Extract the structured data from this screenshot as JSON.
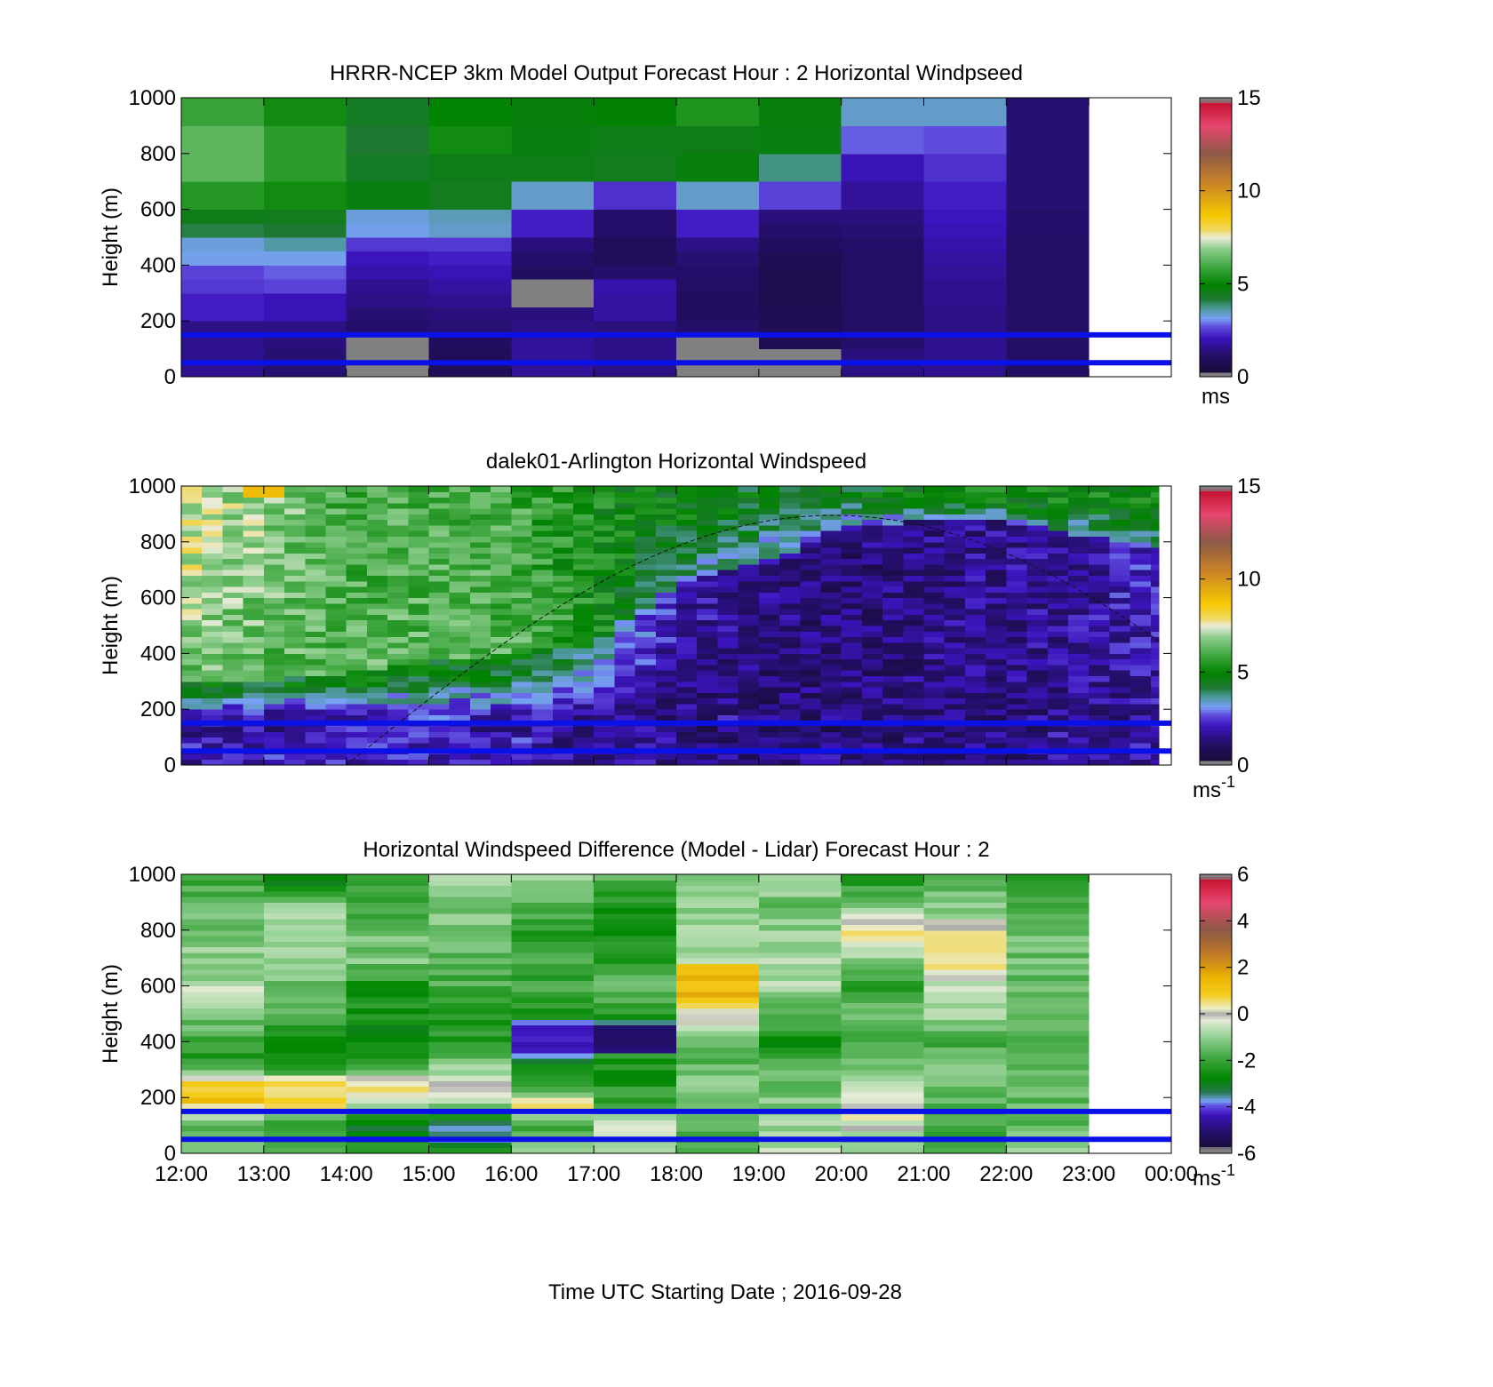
{
  "figure": {
    "xlabel": "Time UTC  Starting Date ; 2016-09-28"
  },
  "chart_data": [
    {
      "type": "heatmap",
      "title": "HRRR-NCEP 3km Model Output   Forecast Hour : 2 Horizontal Windpseed",
      "ylabel": "Height (m)",
      "xlim": [
        12,
        24
      ],
      "ylim": [
        0,
        1000
      ],
      "yticks": [
        0,
        200,
        400,
        600,
        800,
        1000
      ],
      "xticks": [
        12,
        13,
        14,
        15,
        16,
        17,
        18,
        19,
        20,
        21,
        22,
        23,
        24
      ],
      "xticklabels_visible": false,
      "colorbar": {
        "min": 0,
        "max": 15,
        "ticks": [
          0,
          5,
          10,
          15
        ],
        "unit": "ms",
        "unit_sup": "",
        "colormap": "windspeed"
      },
      "reference_lines_m": [
        50,
        150
      ],
      "reference_line_color": "#0a10e8",
      "y_edges": [
        0,
        50,
        100,
        150,
        200,
        250,
        300,
        350,
        400,
        450,
        500,
        550,
        600,
        700,
        800,
        900,
        1000
      ],
      "columns": [
        {
          "x0": 12,
          "x1": 13,
          "values": [
            1.6,
            1.6,
            1.6,
            1.5,
            2.2,
            2.2,
            2.5,
            2.6,
            3.2,
            3.3,
            4.1,
            4.6,
            5.5,
            6.3,
            6.3,
            5.8
          ]
        },
        {
          "x0": 13,
          "x1": 14,
          "values": [
            1.3,
            1.3,
            1.4,
            1.5,
            2.0,
            2.0,
            2.6,
            2.8,
            3.2,
            3.6,
            4.2,
            4.5,
            5.2,
            5.6,
            5.6,
            5.2
          ]
        },
        {
          "x0": 14,
          "x1": 15,
          "values": [
            -1,
            -1,
            -1,
            1.2,
            1.3,
            1.5,
            1.6,
            1.9,
            2.1,
            2.5,
            3.2,
            3.3,
            4.7,
            4.4,
            4.2,
            4.4
          ]
        },
        {
          "x0": 15,
          "x1": 16,
          "values": [
            0.9,
            0.9,
            1.0,
            1.3,
            1.4,
            1.6,
            1.8,
            2.0,
            2.2,
            2.5,
            3.4,
            3.5,
            4.5,
            4.6,
            5.2,
            5.0
          ]
        },
        {
          "x0": 16,
          "x1": 17,
          "values": [
            1.7,
            1.7,
            1.7,
            1.5,
            1.4,
            -1,
            -1,
            1.0,
            1.2,
            1.4,
            2.2,
            2.2,
            3.4,
            4.6,
            4.7,
            4.8
          ]
        },
        {
          "x0": 17,
          "x1": 18,
          "values": [
            1.5,
            1.5,
            1.5,
            1.4,
            1.8,
            1.8,
            1.9,
            1.2,
            0.9,
            0.9,
            1.2,
            1.2,
            2.4,
            4.5,
            4.6,
            4.9
          ]
        },
        {
          "x0": 18,
          "x1": 19,
          "values": [
            -1,
            -1,
            -1,
            1.2,
            1.0,
            1.0,
            1.1,
            1.2,
            1.3,
            1.5,
            2.2,
            2.2,
            3.4,
            4.8,
            4.6,
            5.4
          ]
        },
        {
          "x0": 19,
          "x1": 20,
          "values": [
            -1,
            -1,
            0.8,
            0.8,
            0.8,
            0.7,
            0.7,
            0.7,
            0.8,
            1.0,
            1.2,
            1.4,
            2.6,
            3.8,
            4.7,
            4.8
          ]
        },
        {
          "x0": 20,
          "x1": 21,
          "values": [
            1.5,
            1.4,
            1.2,
            1.1,
            1.1,
            1.1,
            1.1,
            1.1,
            1.1,
            1.2,
            1.3,
            1.4,
            1.7,
            2.0,
            2.8,
            3.4
          ]
        },
        {
          "x0": 21,
          "x1": 22,
          "values": [
            1.6,
            1.6,
            1.6,
            1.5,
            1.5,
            1.6,
            1.6,
            1.7,
            1.8,
            1.9,
            2.0,
            2.1,
            2.2,
            2.4,
            2.7,
            3.4
          ]
        },
        {
          "x0": 22,
          "x1": 23,
          "values": [
            1.1,
            1.1,
            1.1,
            1.1,
            1.1,
            1.1,
            1.1,
            1.1,
            1.1,
            1.1,
            1.2,
            1.2,
            1.3,
            1.3,
            1.3,
            1.3
          ]
        }
      ]
    },
    {
      "type": "heatmap",
      "title": "dalek01-Arlington  Horizontal Windspeed",
      "ylabel": "Height (m)",
      "xlim": [
        12,
        24
      ],
      "ylim": [
        0,
        1000
      ],
      "yticks": [
        0,
        200,
        400,
        600,
        800,
        1000
      ],
      "xticks": [
        12,
        13,
        14,
        15,
        16,
        17,
        18,
        19,
        20,
        21,
        22,
        23,
        24
      ],
      "xticklabels_visible": false,
      "colorbar": {
        "min": 0,
        "max": 15,
        "ticks": [
          0,
          5,
          10,
          15
        ],
        "unit": "ms",
        "unit_sup": "-1",
        "colormap": "windspeed"
      },
      "reference_lines_m": [
        50,
        150
      ],
      "reference_line_color": "#0a10e8",
      "data_range_x": [
        12,
        23.85
      ],
      "time_step_h": 0.25,
      "height_step_m": 20,
      "profile_anchors": {
        "x": [
          12,
          13,
          14,
          15,
          16,
          17,
          18,
          19,
          20,
          21,
          22,
          23,
          23.85
        ],
        "mixing_height_m": [
          300,
          300,
          330,
          370,
          400,
          430,
          650,
          720,
          850,
          880,
          870,
          820,
          780
        ],
        "low_jet_ms": [
          2.6,
          2.6,
          3.0,
          3.4,
          2.8,
          2.5,
          2.0,
          1.8,
          1.8,
          2.0,
          2.0,
          2.2,
          2.6
        ],
        "upper_ms": [
          7.5,
          6.8,
          6.0,
          6.1,
          6.0,
          5.2,
          4.8,
          4.6,
          4.6,
          4.8,
          5.0,
          5.0,
          5.0
        ],
        "mid_ms": [
          4.8,
          4.6,
          4.6,
          4.7,
          4.6,
          3.8,
          2.0,
          1.5,
          1.3,
          1.5,
          1.6,
          1.9,
          2.3
        ]
      },
      "peak_patch": {
        "x": [
          12.8,
          13.3
        ],
        "y": [
          960,
          990
        ],
        "value": 9.0
      },
      "solar_curve": {
        "x": [
          14,
          23.85
        ],
        "peak_x": 19.9,
        "peak_y_m": 895,
        "style": "dashed"
      }
    },
    {
      "type": "heatmap",
      "title": "Horizontal Windspeed Difference (Model - Lidar) Forecast Hour : 2",
      "ylabel": "Height (m)",
      "xlabel": "Time UTC  Starting Date ; 2016-09-28",
      "xlim": [
        12,
        24
      ],
      "ylim": [
        0,
        1000
      ],
      "yticks": [
        0,
        200,
        400,
        600,
        800,
        1000
      ],
      "xticks": [
        12,
        13,
        14,
        15,
        16,
        17,
        18,
        19,
        20,
        21,
        22,
        23,
        24
      ],
      "xticklabels": [
        "12:00",
        "13:00",
        "14:00",
        "15:00",
        "16:00",
        "17:00",
        "18:00",
        "19:00",
        "20:00",
        "21:00",
        "22:00",
        "23:00",
        "00:00"
      ],
      "colorbar": {
        "min": -6,
        "max": 6,
        "ticks": [
          -6,
          -4,
          -2,
          0,
          2,
          4,
          6
        ],
        "unit": "ms",
        "unit_sup": "-1",
        "colormap": "difference"
      },
      "reference_lines_m": [
        50,
        150
      ],
      "reference_line_color": "#0a10e8",
      "height_step_m": 20,
      "columns": [
        {
          "x0": 12,
          "x1": 13,
          "profile": [
            [
              0,
              -1.2
            ],
            [
              120,
              -1.5
            ],
            [
              180,
              1.0
            ],
            [
              260,
              1.0
            ],
            [
              300,
              -2.0
            ],
            [
              400,
              -2.3
            ],
            [
              480,
              -1.2
            ],
            [
              560,
              -0.4
            ],
            [
              620,
              -1.0
            ],
            [
              800,
              -1.2
            ],
            [
              900,
              -1.6
            ],
            [
              1000,
              -2.0
            ]
          ]
        },
        {
          "x0": 13,
          "x1": 14,
          "profile": [
            [
              0,
              -1.5
            ],
            [
              100,
              -2.4
            ],
            [
              180,
              1.0
            ],
            [
              260,
              0.8
            ],
            [
              300,
              -2.4
            ],
            [
              420,
              -2.6
            ],
            [
              480,
              -1.8
            ],
            [
              600,
              -1.4
            ],
            [
              800,
              -0.6
            ],
            [
              900,
              -1.2
            ],
            [
              960,
              -2.6
            ],
            [
              1000,
              -3.0
            ]
          ]
        },
        {
          "x0": 14,
          "x1": 15,
          "profile": [
            [
              0,
              -2.0
            ],
            [
              100,
              -3.2
            ],
            [
              200,
              0.3
            ],
            [
              260,
              0.4
            ],
            [
              300,
              -2.0
            ],
            [
              400,
              -2.6
            ],
            [
              600,
              -2.4
            ],
            [
              700,
              -1.2
            ],
            [
              800,
              -1.4
            ],
            [
              1000,
              -2.4
            ]
          ]
        },
        {
          "x0": 15,
          "x1": 16,
          "profile": [
            [
              0,
              -2.2
            ],
            [
              60,
              -3.6
            ],
            [
              140,
              -2.6
            ],
            [
              220,
              0.0
            ],
            [
              300,
              -1.0
            ],
            [
              400,
              -2.4
            ],
            [
              500,
              -2.1
            ],
            [
              700,
              -1.6
            ],
            [
              900,
              -1.2
            ],
            [
              1000,
              -0.6
            ]
          ]
        },
        {
          "x0": 16,
          "x1": 17,
          "profile": [
            [
              0,
              -0.8
            ],
            [
              100,
              -1.8
            ],
            [
              180,
              0.6
            ],
            [
              240,
              -2.6
            ],
            [
              300,
              -2.2
            ],
            [
              360,
              -3.8
            ],
            [
              400,
              -4.6
            ],
            [
              460,
              -4.8
            ],
            [
              480,
              -2.6
            ],
            [
              600,
              -1.9
            ],
            [
              800,
              -2.2
            ],
            [
              1000,
              -1.0
            ]
          ]
        },
        {
          "x0": 17,
          "x1": 18,
          "profile": [
            [
              0,
              -1.0
            ],
            [
              110,
              -0.2
            ],
            [
              170,
              -1.8
            ],
            [
              260,
              -2.4
            ],
            [
              350,
              -2.4
            ],
            [
              370,
              -4.8
            ],
            [
              460,
              -4.7
            ],
            [
              480,
              -2.6
            ],
            [
              600,
              -1.2
            ],
            [
              700,
              -2.4
            ],
            [
              850,
              -2.6
            ],
            [
              1000,
              -1.6
            ]
          ]
        },
        {
          "x0": 18,
          "x1": 19,
          "profile": [
            [
              0,
              -2.0
            ],
            [
              200,
              -1.2
            ],
            [
              300,
              -1.4
            ],
            [
              400,
              -1.8
            ],
            [
              440,
              -0.3
            ],
            [
              500,
              0.3
            ],
            [
              560,
              1.4
            ],
            [
              640,
              1.2
            ],
            [
              680,
              0.6
            ],
            [
              700,
              -1.0
            ],
            [
              800,
              -0.9
            ],
            [
              1000,
              -1.0
            ]
          ]
        },
        {
          "x0": 19,
          "x1": 20,
          "profile": [
            [
              0,
              -0.6
            ],
            [
              200,
              -1.2
            ],
            [
              300,
              -1.4
            ],
            [
              400,
              -2.6
            ],
            [
              500,
              -1.8
            ],
            [
              600,
              -0.8
            ],
            [
              680,
              -0.6
            ],
            [
              760,
              -0.8
            ],
            [
              900,
              -1.4
            ],
            [
              1000,
              -0.4
            ]
          ]
        },
        {
          "x0": 20,
          "x1": 21,
          "profile": [
            [
              0,
              -1.6
            ],
            [
              140,
              0.2
            ],
            [
              200,
              -0.3
            ],
            [
              300,
              -1.2
            ],
            [
              400,
              -1.8
            ],
            [
              500,
              -1.4
            ],
            [
              600,
              -2.2
            ],
            [
              700,
              -1.2
            ],
            [
              780,
              0.3
            ],
            [
              860,
              -0.8
            ],
            [
              920,
              -2.0
            ],
            [
              1000,
              -2.2
            ]
          ]
        },
        {
          "x0": 21,
          "x1": 22,
          "profile": [
            [
              0,
              -1.8
            ],
            [
              200,
              -1.6
            ],
            [
              300,
              -1.4
            ],
            [
              400,
              -1.8
            ],
            [
              500,
              -1.0
            ],
            [
              600,
              -0.6
            ],
            [
              680,
              0.4
            ],
            [
              720,
              0.2
            ],
            [
              800,
              0.3
            ],
            [
              880,
              -1.2
            ],
            [
              1000,
              -1.8
            ]
          ]
        },
        {
          "x0": 22,
          "x1": 23,
          "profile": [
            [
              0,
              -1.2
            ],
            [
              200,
              -1.6
            ],
            [
              300,
              -1.3
            ],
            [
              400,
              -1.4
            ],
            [
              600,
              -1.6
            ],
            [
              800,
              -1.2
            ],
            [
              900,
              -2.0
            ],
            [
              1000,
              -2.4
            ]
          ]
        }
      ]
    }
  ]
}
